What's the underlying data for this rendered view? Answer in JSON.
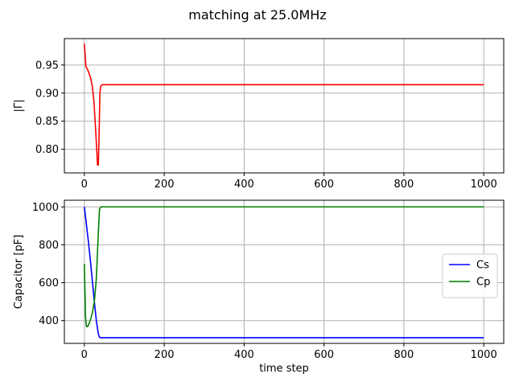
{
  "figure": {
    "title": "matching at 25.0MHz"
  },
  "chart_data": [
    {
      "type": "line",
      "title": "",
      "xlabel": "",
      "ylabel": "|Γ|",
      "xlim": [
        -50,
        1050
      ],
      "ylim": [
        0.758,
        0.997
      ],
      "xticks": [
        0,
        200,
        400,
        600,
        800,
        1000
      ],
      "yticks": [
        0.8,
        0.85,
        0.9,
        0.95
      ],
      "ytick_labels": [
        "0.80",
        "0.85",
        "0.90",
        "0.95"
      ],
      "grid": true,
      "series": [
        {
          "name": "",
          "color": "#ff0000",
          "x": [
            0,
            4,
            8,
            12,
            16,
            20,
            24,
            28,
            31,
            33,
            35,
            37,
            39,
            41,
            43,
            46,
            50,
            100,
            300,
            600,
            1000
          ],
          "y": [
            0.988,
            0.947,
            0.942,
            0.935,
            0.926,
            0.912,
            0.885,
            0.838,
            0.8,
            0.772,
            0.772,
            0.83,
            0.9,
            0.912,
            0.914,
            0.915,
            0.915,
            0.915,
            0.915,
            0.915,
            0.915
          ]
        }
      ]
    },
    {
      "type": "line",
      "title": "",
      "xlabel": "time step",
      "ylabel": "Capacitor [pF]",
      "xlim": [
        -50,
        1050
      ],
      "ylim": [
        280,
        1035
      ],
      "xticks": [
        0,
        200,
        400,
        600,
        800,
        1000
      ],
      "yticks": [
        400,
        600,
        800,
        1000
      ],
      "ytick_labels": [
        "400",
        "600",
        "800",
        "1000"
      ],
      "grid": true,
      "legend": "center-right",
      "series": [
        {
          "name": "Cs",
          "color": "#0000ff",
          "x": [
            0,
            5,
            10,
            15,
            20,
            25,
            30,
            35,
            38,
            42,
            50,
            100,
            500,
            1000
          ],
          "y": [
            1000,
            910,
            820,
            720,
            610,
            500,
            400,
            330,
            312,
            310,
            310,
            310,
            310,
            310
          ]
        },
        {
          "name": "Cp",
          "color": "#008000",
          "x": [
            0,
            3,
            5,
            8,
            12,
            16,
            20,
            25,
            30,
            35,
            38,
            42,
            50,
            100,
            500,
            1000
          ],
          "y": [
            700,
            420,
            370,
            368,
            385,
            410,
            440,
            500,
            620,
            860,
            990,
            1000,
            1000,
            1000,
            1000,
            1000
          ]
        }
      ]
    }
  ]
}
